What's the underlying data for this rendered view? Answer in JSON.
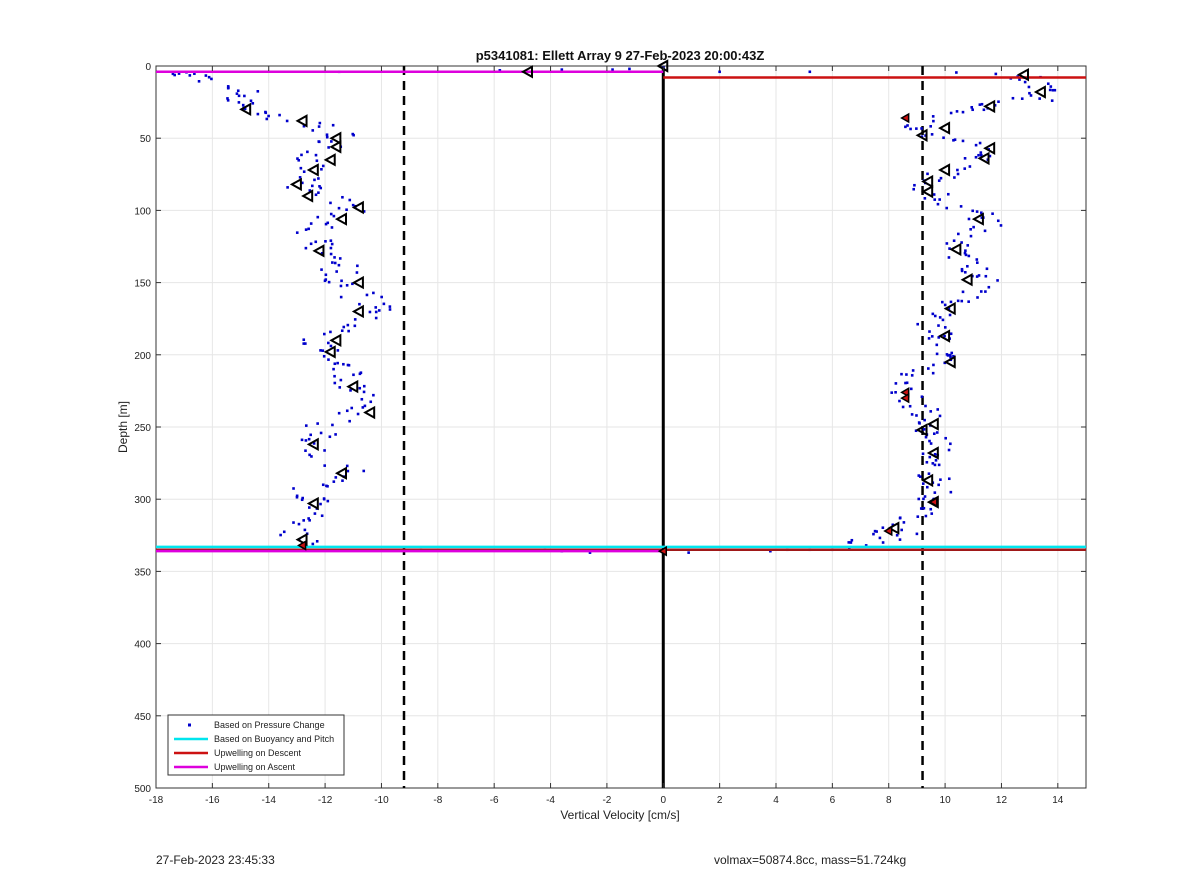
{
  "footer": {
    "timestamp": "27-Feb-2023 23:45:33",
    "info": "volmax=50874.8cc, mass=51.724kg"
  },
  "chart_data": {
    "type": "scatter",
    "title": "p5341081: Ellett Array 9 27-Feb-2023 20:00:43Z",
    "xlabel": "Vertical Velocity [cm/s]",
    "ylabel": "Depth [m]",
    "xlim": [
      -18,
      15
    ],
    "ylim": [
      0,
      500
    ],
    "y_reversed": true,
    "xticks": [
      -18,
      -16,
      -14,
      -12,
      -10,
      -8,
      -6,
      -4,
      -2,
      0,
      2,
      4,
      6,
      8,
      10,
      12,
      14
    ],
    "yticks": [
      0,
      50,
      100,
      150,
      200,
      250,
      300,
      350,
      400,
      450,
      500
    ],
    "grid": true,
    "legend_position": "bottom-left",
    "legend": [
      {
        "label": "Based on Pressure Change",
        "color": "#0000cc",
        "kind": "dot"
      },
      {
        "label": "Based on Buoyancy and Pitch",
        "color": "#00e5ee",
        "kind": "line"
      },
      {
        "label": "Upwelling on Descent",
        "color": "#cc1111",
        "kind": "line"
      },
      {
        "label": "Upwelling on Ascent",
        "color": "#dd00dd",
        "kind": "line"
      }
    ],
    "dashed_vlines": [
      -9.2,
      9.2
    ],
    "zero_line": 0,
    "hlines": [
      {
        "y": 333,
        "x": [
          -18,
          15
        ],
        "color": "#00e5ee"
      },
      {
        "y": 335,
        "x": [
          -18,
          15
        ],
        "color": "#a01818"
      },
      {
        "y": 336,
        "x": [
          -18,
          0
        ],
        "color": "#dd00dd"
      },
      {
        "y": 4,
        "x": [
          -18,
          0
        ],
        "color": "#dd00dd"
      },
      {
        "y": 8,
        "x": [
          0,
          15
        ],
        "color": "#cc1111"
      }
    ],
    "ascent_path": [
      [
        -17.2,
        5
      ],
      [
        -16.8,
        6
      ],
      [
        -15.4,
        13
      ],
      [
        -15.0,
        18
      ],
      [
        -14.8,
        22
      ],
      [
        -15.0,
        26
      ],
      [
        -14.6,
        30
      ],
      [
        -14.2,
        33
      ],
      [
        -12.6,
        38
      ],
      [
        -11.8,
        44
      ],
      [
        -11.4,
        50
      ],
      [
        -11.8,
        56
      ],
      [
        -12.2,
        62
      ],
      [
        -12.6,
        68
      ],
      [
        -12.8,
        74
      ],
      [
        -13.0,
        80
      ],
      [
        -12.4,
        86
      ],
      [
        -11.6,
        92
      ],
      [
        -11.0,
        98
      ],
      [
        -11.4,
        104
      ],
      [
        -12.0,
        110
      ],
      [
        -12.6,
        116
      ],
      [
        -12.4,
        122
      ],
      [
        -12.0,
        128
      ],
      [
        -11.6,
        134
      ],
      [
        -11.4,
        140
      ],
      [
        -11.8,
        146
      ],
      [
        -11.2,
        152
      ],
      [
        -10.8,
        158
      ],
      [
        -10.4,
        164
      ],
      [
        -9.8,
        170
      ],
      [
        -10.6,
        176
      ],
      [
        -11.4,
        182
      ],
      [
        -12.0,
        188
      ],
      [
        -12.2,
        194
      ],
      [
        -11.8,
        200
      ],
      [
        -11.6,
        206
      ],
      [
        -11.4,
        212
      ],
      [
        -11.0,
        218
      ],
      [
        -10.8,
        224
      ],
      [
        -10.4,
        230
      ],
      [
        -10.8,
        236
      ],
      [
        -11.4,
        242
      ],
      [
        -12.0,
        250
      ],
      [
        -12.4,
        258
      ],
      [
        -12.2,
        266
      ],
      [
        -11.6,
        274
      ],
      [
        -11.2,
        282
      ],
      [
        -12.2,
        288
      ],
      [
        -12.8,
        294
      ],
      [
        -12.4,
        300
      ],
      [
        -12.0,
        306
      ],
      [
        -12.2,
        312
      ],
      [
        -12.8,
        318
      ],
      [
        -13.0,
        324
      ],
      [
        -12.6,
        330
      ]
    ],
    "descent_path": [
      [
        12.6,
        6
      ],
      [
        13.0,
        10
      ],
      [
        13.6,
        15
      ],
      [
        13.2,
        20
      ],
      [
        12.4,
        24
      ],
      [
        11.6,
        28
      ],
      [
        10.8,
        32
      ],
      [
        9.6,
        36
      ],
      [
        9.0,
        42
      ],
      [
        9.4,
        48
      ],
      [
        10.2,
        52
      ],
      [
        11.0,
        56
      ],
      [
        11.4,
        62
      ],
      [
        10.6,
        68
      ],
      [
        10.0,
        74
      ],
      [
        9.6,
        80
      ],
      [
        9.4,
        86
      ],
      [
        9.8,
        92
      ],
      [
        10.4,
        98
      ],
      [
        11.2,
        104
      ],
      [
        11.6,
        110
      ],
      [
        11.0,
        116
      ],
      [
        10.4,
        122
      ],
      [
        10.2,
        128
      ],
      [
        10.6,
        134
      ],
      [
        11.0,
        140
      ],
      [
        11.4,
        146
      ],
      [
        11.2,
        152
      ],
      [
        10.8,
        158
      ],
      [
        10.4,
        164
      ],
      [
        10.0,
        170
      ],
      [
        9.6,
        176
      ],
      [
        9.4,
        182
      ],
      [
        9.8,
        188
      ],
      [
        10.2,
        194
      ],
      [
        10.0,
        200
      ],
      [
        9.6,
        206
      ],
      [
        9.2,
        212
      ],
      [
        8.8,
        218
      ],
      [
        8.6,
        226
      ],
      [
        8.8,
        232
      ],
      [
        9.2,
        238
      ],
      [
        9.4,
        244
      ],
      [
        9.6,
        250
      ],
      [
        9.4,
        256
      ],
      [
        9.6,
        262
      ],
      [
        9.8,
        268
      ],
      [
        9.6,
        274
      ],
      [
        9.4,
        280
      ],
      [
        9.6,
        286
      ],
      [
        9.8,
        292
      ],
      [
        9.6,
        298
      ],
      [
        9.4,
        304
      ],
      [
        9.0,
        310
      ],
      [
        8.4,
        316
      ],
      [
        8.0,
        322
      ],
      [
        7.6,
        326
      ],
      [
        7.0,
        330
      ]
    ],
    "surface_points": [
      [
        -17.4,
        5.4
      ],
      [
        -16.8,
        6.5
      ],
      [
        -11.5,
        4
      ],
      [
        -5.8,
        3
      ],
      [
        -3.6,
        2.5
      ],
      [
        -1.8,
        2.5
      ],
      [
        -1.2,
        2
      ],
      [
        0,
        1
      ],
      [
        2.0,
        4
      ],
      [
        5.2,
        4
      ],
      [
        10.4,
        4.5
      ],
      [
        11.8,
        5.5
      ],
      [
        12.8,
        8
      ],
      [
        13.8,
        24
      ]
    ],
    "bottom_points": [
      [
        -8.6,
        335
      ],
      [
        -4.2,
        335
      ],
      [
        -3.6,
        336
      ],
      [
        -2.6,
        337
      ],
      [
        0,
        337
      ],
      [
        0.9,
        337
      ],
      [
        3.8,
        336
      ],
      [
        4.4,
        335
      ],
      [
        5.2,
        335
      ],
      [
        6.0,
        335
      ],
      [
        6.6,
        334
      ],
      [
        7.2,
        332
      ],
      [
        7.8,
        330
      ],
      [
        8.4,
        328
      ],
      [
        9.0,
        324
      ]
    ],
    "ascent_triangles": [
      [
        -4.8,
        4
      ],
      [
        -14.8,
        30
      ],
      [
        -12.8,
        38
      ],
      [
        -11.6,
        50
      ],
      [
        -11.6,
        56
      ],
      [
        -11.8,
        65
      ],
      [
        -12.4,
        72
      ],
      [
        -13.0,
        82
      ],
      [
        -12.6,
        90
      ],
      [
        -10.8,
        98
      ],
      [
        -11.4,
        106
      ],
      [
        -12.2,
        128
      ],
      [
        -10.8,
        150
      ],
      [
        -10.8,
        170
      ],
      [
        -11.6,
        190
      ],
      [
        -11.8,
        198
      ],
      [
        -11.0,
        222
      ],
      [
        -10.4,
        240
      ],
      [
        -12.4,
        262
      ],
      [
        -11.4,
        282
      ],
      [
        -12.4,
        303
      ],
      [
        -12.8,
        328
      ],
      [
        0,
        0
      ]
    ],
    "descent_triangles": [
      [
        12.8,
        6
      ],
      [
        13.4,
        18
      ],
      [
        11.6,
        28
      ],
      [
        10.0,
        43
      ],
      [
        9.2,
        48
      ],
      [
        11.6,
        57
      ],
      [
        11.4,
        64
      ],
      [
        10.0,
        72
      ],
      [
        9.4,
        80
      ],
      [
        9.4,
        87
      ],
      [
        11.2,
        106
      ],
      [
        10.4,
        127
      ],
      [
        10.8,
        148
      ],
      [
        10.2,
        168
      ],
      [
        10.0,
        187
      ],
      [
        10.2,
        205
      ],
      [
        9.6,
        248
      ],
      [
        9.2,
        252
      ],
      [
        9.6,
        268
      ],
      [
        9.4,
        287
      ],
      [
        9.6,
        302
      ],
      [
        8.2,
        320
      ]
    ],
    "red_markers": [
      [
        8.6,
        36
      ],
      [
        8.6,
        226
      ],
      [
        8.6,
        230
      ],
      [
        8.0,
        322
      ],
      [
        9.6,
        302
      ],
      [
        -12.8,
        332
      ],
      [
        0,
        336
      ]
    ]
  }
}
